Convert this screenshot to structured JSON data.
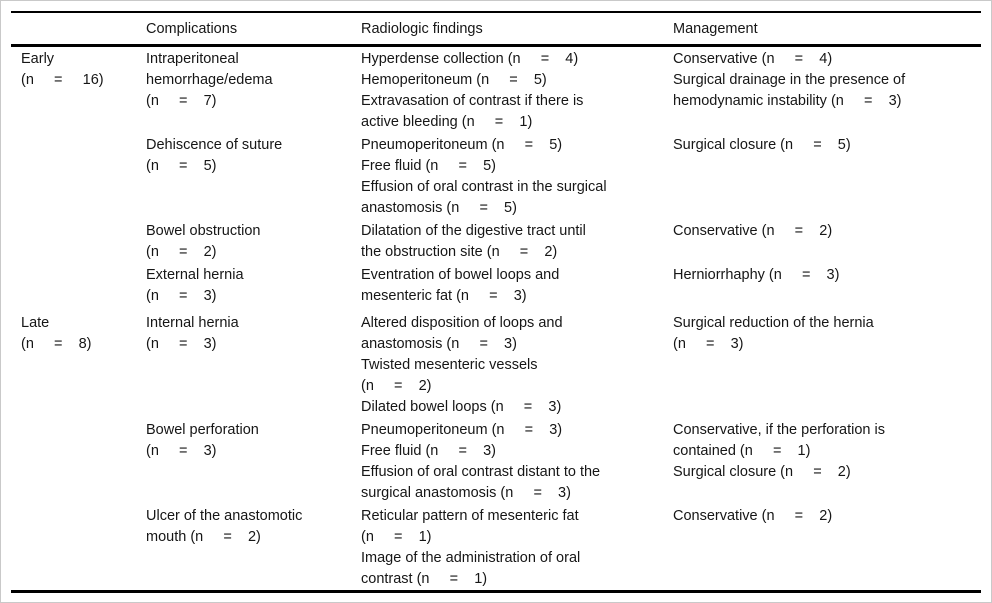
{
  "table": {
    "headers": {
      "stage": "",
      "complications": "Complications",
      "radiologic_findings": "Radiologic findings",
      "management": "Management"
    },
    "rows": [
      {
        "section_start": false,
        "stage": "Early\n(n     =     16)",
        "complication": "Intraperitoneal\nhemorrhage/edema\n(n     =    7)",
        "radiologic": "Hyperdense collection (n     =    4)\nHemoperitoneum (n     =    5)\nExtravasation of contrast if there is\nactive bleeding (n     =    1)",
        "management": "Conservative (n     =    4)\nSurgical drainage in the presence of\nhemodynamic instability (n     =    3)"
      },
      {
        "section_start": false,
        "stage": "",
        "complication": "Dehiscence of suture\n(n     =    5)",
        "radiologic": "Pneumoperitoneum (n     =    5)\nFree fluid (n     =    5)\nEffusion of oral contrast in the surgical\nanastomosis (n     =    5)",
        "management": "Surgical closure (n     =    5)"
      },
      {
        "section_start": false,
        "stage": "",
        "complication": "Bowel obstruction\n(n     =    2)",
        "radiologic": "Dilatation of the digestive tract until\nthe obstruction site (n     =    2)",
        "management": "Conservative (n     =    2)"
      },
      {
        "section_start": false,
        "stage": "",
        "complication": "External hernia\n(n     =    3)",
        "radiologic": "Eventration of bowel loops and\nmesenteric fat (n     =    3)",
        "management": "Herniorrhaphy (n     =    3)"
      },
      {
        "section_start": true,
        "stage": "Late\n(n     =    8)",
        "complication": "Internal hernia\n(n     =    3)",
        "radiologic": "Altered disposition of loops and\nanastomosis (n     =    3)\nTwisted mesenteric vessels\n(n     =    2)\nDilated bowel loops (n     =    3)",
        "management": "Surgical reduction of the hernia\n(n     =    3)"
      },
      {
        "section_start": false,
        "stage": "",
        "complication": "Bowel perforation\n(n     =    3)",
        "radiologic": "Pneumoperitoneum (n     =    3)\nFree fluid (n     =    3)\nEffusion of oral contrast distant to the\nsurgical anastomosis (n     =    3)",
        "management": "Conservative, if the perforation is\ncontained (n     =    1)\nSurgical closure (n     =    2)"
      },
      {
        "section_start": false,
        "stage": "",
        "complication": "Ulcer of the anastomotic\nmouth (n     =    2)",
        "radiologic": "Reticular pattern of mesenteric fat\n(n     =    1)\nImage of the administration of oral\ncontrast (n     =    1)",
        "management": "Conservative (n     =    2)"
      }
    ]
  },
  "colors": {
    "rule": "#000000",
    "text": "#161616",
    "background": "#ffffff",
    "frame": "#c9c9c9"
  }
}
